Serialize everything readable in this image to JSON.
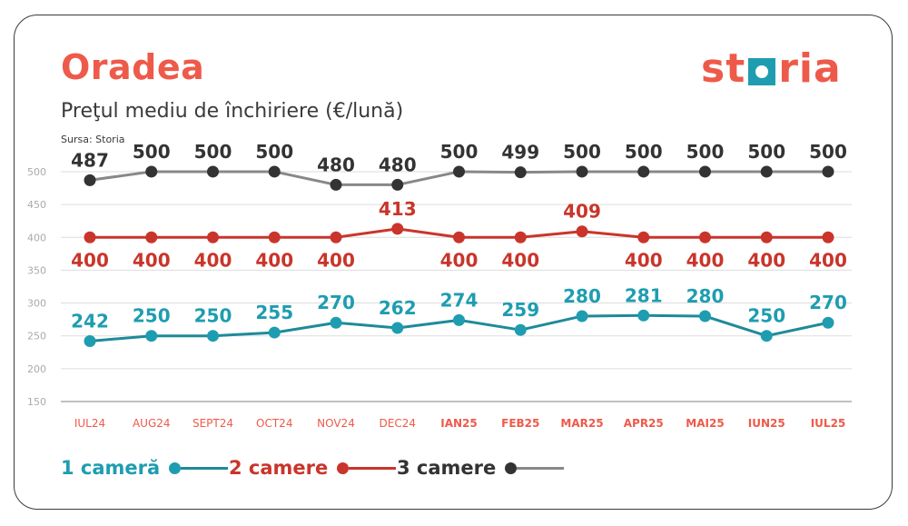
{
  "title": "Oradea",
  "subtitle": "Preţul mediu de închiriere (€/lună)",
  "source": "Sursa: Storia",
  "logo": {
    "text_left": "st",
    "text_right": "ria",
    "name": "storia-logo"
  },
  "colors": {
    "accent": "#ee5a4a",
    "teal": "#1e9db0",
    "red": "#c9352b",
    "dark": "#333333",
    "gray": "#888888"
  },
  "chart_data": {
    "type": "line",
    "categories": [
      "IUL24",
      "AUG24",
      "SEPT24",
      "OCT24",
      "NOV24",
      "DEC24",
      "IAN25",
      "FEB25",
      "MAR25",
      "APR25",
      "MAI25",
      "IUN25",
      "IUL25"
    ],
    "series": [
      {
        "name": "1 cameră",
        "values": [
          242,
          250,
          250,
          255,
          270,
          262,
          274,
          259,
          280,
          281,
          280,
          250,
          270
        ],
        "label_color": "#1e9db0",
        "line_color": "#1e8a9a",
        "dot_color": "#1e9db0"
      },
      {
        "name": "2 camere",
        "values": [
          400,
          400,
          400,
          400,
          400,
          413,
          400,
          400,
          409,
          400,
          400,
          400,
          400
        ],
        "label_color": "#c9352b",
        "line_color": "#c9352b",
        "dot_color": "#c9352b"
      },
      {
        "name": "3 camere",
        "values": [
          487,
          500,
          500,
          500,
          480,
          480,
          500,
          499,
          500,
          500,
          500,
          500,
          500
        ],
        "label_color": "#333333",
        "line_color": "#888888",
        "dot_color": "#333333"
      }
    ],
    "y_ticks": [
      150,
      200,
      250,
      300,
      350,
      400,
      450,
      500
    ],
    "ylim": [
      150,
      500
    ],
    "grid": true,
    "legend": "bottom-left"
  }
}
